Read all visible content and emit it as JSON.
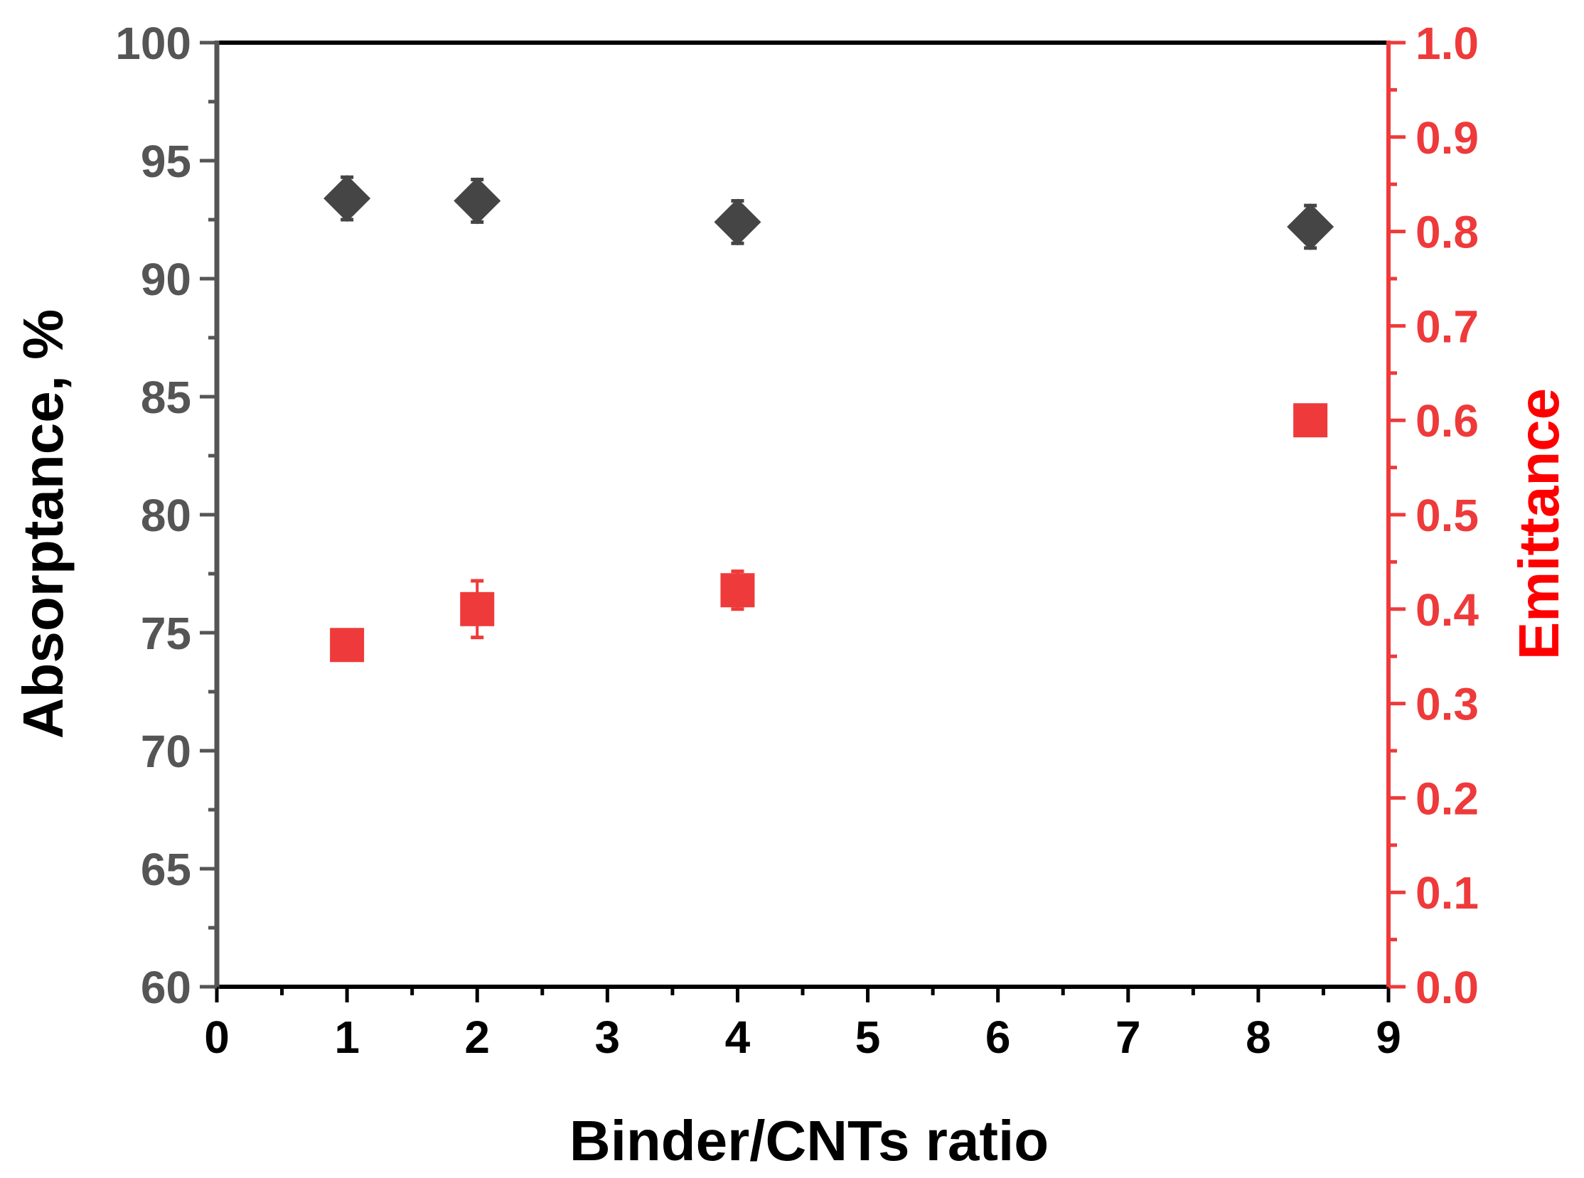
{
  "chart_data": {
    "type": "scatter",
    "xlabel": "Binder/CNTs ratio",
    "ylabel_left": "Absorptance, %",
    "ylabel_right": "Emittance",
    "xlim": [
      0,
      9
    ],
    "ylim_left": [
      60,
      100
    ],
    "ylim_right": [
      0.0,
      1.0
    ],
    "x_ticks": [
      "0",
      "1",
      "2",
      "3",
      "4",
      "5",
      "6",
      "7",
      "8",
      "9"
    ],
    "y_left_ticks": [
      "60",
      "65",
      "70",
      "75",
      "80",
      "85",
      "90",
      "95",
      "100"
    ],
    "y_right_ticks": [
      "0.0",
      "0.1",
      "0.2",
      "0.3",
      "0.4",
      "0.5",
      "0.6",
      "0.7",
      "0.8",
      "0.9",
      "1.0"
    ],
    "grid": false,
    "legend": "none",
    "series": [
      {
        "axis": "left",
        "marker": "diamond",
        "color": "#454545",
        "points": [
          {
            "x": 1,
            "y": 93.4,
            "err": 0.9
          },
          {
            "x": 2,
            "y": 93.3,
            "err": 0.9
          },
          {
            "x": 4,
            "y": 92.4,
            "err": 0.9
          },
          {
            "x": 8.4,
            "y": 92.2,
            "err": 0.9
          }
        ]
      },
      {
        "axis": "right",
        "marker": "square",
        "color": "#ee3a3a",
        "points": [
          {
            "x": 1,
            "y": 0.362,
            "err": 0.015
          },
          {
            "x": 2,
            "y": 0.4,
            "err": 0.03
          },
          {
            "x": 4,
            "y": 0.42,
            "err": 0.02
          },
          {
            "x": 8.4,
            "y": 0.6,
            "err": 0.015
          }
        ]
      }
    ],
    "colors": {
      "left_axis": "#555555",
      "right_axis": "#ee3a3a",
      "bottom_axis": "#000000",
      "right_title": "#ff0000"
    }
  }
}
